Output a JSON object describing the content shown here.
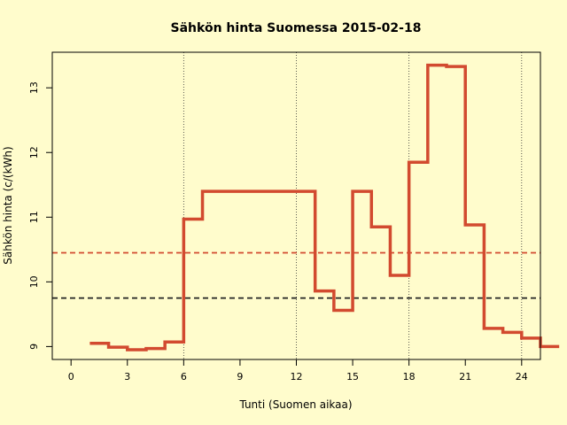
{
  "chart_data": {
    "type": "line",
    "title": "Sähkön hinta Suomessa 2015-02-18",
    "xlabel": "Tunti (Suomen aikaa)",
    "ylabel": "Sähkön hinta (c/(kWh)",
    "xlim": [
      -1,
      25
    ],
    "ylim": [
      8.8,
      13.55
    ],
    "x_ticks": [
      0,
      3,
      6,
      9,
      12,
      15,
      18,
      21,
      24
    ],
    "y_ticks": [
      9,
      10,
      11,
      12,
      13
    ],
    "vertical_lines": [
      6,
      12,
      18,
      24
    ],
    "series": [
      {
        "style": "step",
        "color": "#d24a2f",
        "x": [
          1,
          2,
          3,
          4,
          5,
          6,
          7,
          8,
          9,
          10,
          11,
          12,
          13,
          14,
          15,
          16,
          17,
          18,
          19,
          20,
          21,
          22,
          23,
          24,
          25
        ],
        "values": [
          9.05,
          8.99,
          8.95,
          8.97,
          9.07,
          10.97,
          11.4,
          11.4,
          11.4,
          11.4,
          11.4,
          11.4,
          9.86,
          9.56,
          11.4,
          10.85,
          10.1,
          11.85,
          13.35,
          13.33,
          10.88,
          9.28,
          9.22,
          9.13,
          9.0
        ]
      }
    ],
    "reference_lines": [
      {
        "value": 10.45,
        "color": "#d24a2f",
        "style": "dashed"
      },
      {
        "value": 9.75,
        "color": "#222222",
        "style": "dashed"
      }
    ]
  }
}
